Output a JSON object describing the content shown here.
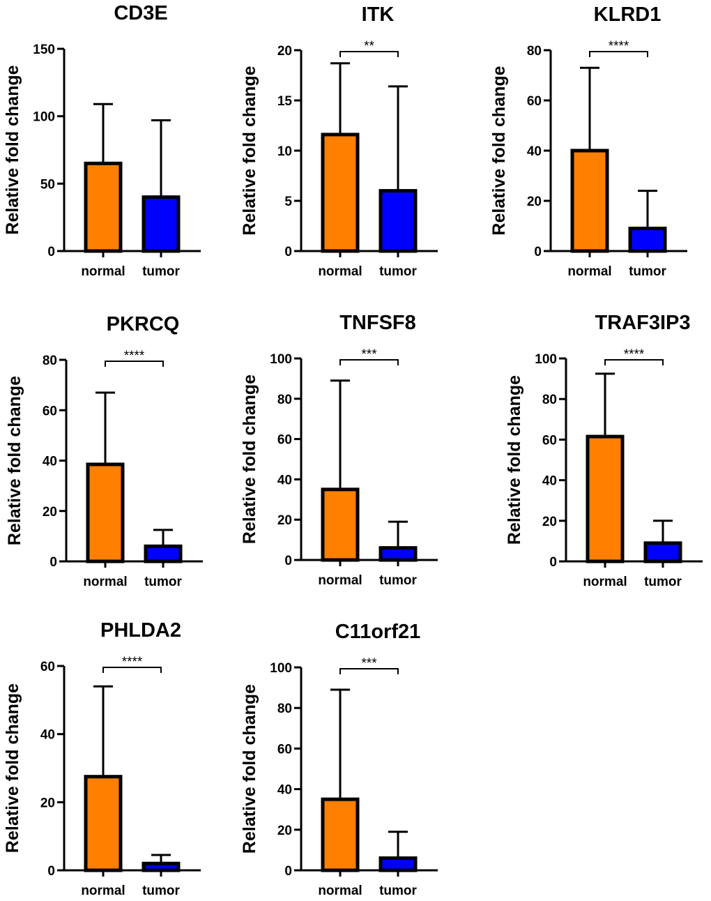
{
  "chart_data": [
    {
      "type": "bar",
      "title": "CD3E",
      "ylabel": "Relative fold change",
      "categories": [
        "normal",
        "tumor"
      ],
      "values": [
        65,
        40
      ],
      "error_upper": [
        109,
        97
      ],
      "ylim": [
        0,
        150
      ],
      "yticks": [
        0,
        50,
        100,
        150
      ],
      "significance": "",
      "colors": [
        "#ff8000",
        "#0000ff"
      ]
    },
    {
      "type": "bar",
      "title": "ITK",
      "ylabel": "Relative fold change",
      "categories": [
        "normal",
        "tumor"
      ],
      "values": [
        11.6,
        6
      ],
      "error_upper": [
        18.7,
        16.4
      ],
      "ylim": [
        0,
        20
      ],
      "yticks": [
        0,
        5,
        10,
        15,
        20
      ],
      "significance": "**",
      "colors": [
        "#ff8000",
        "#0000ff"
      ]
    },
    {
      "type": "bar",
      "title": "KLRD1",
      "ylabel": "Relative fold change",
      "categories": [
        "normal",
        "tumor"
      ],
      "values": [
        40,
        9
      ],
      "error_upper": [
        73,
        24
      ],
      "ylim": [
        0,
        80
      ],
      "yticks": [
        0,
        20,
        40,
        60,
        80
      ],
      "significance": "****",
      "colors": [
        "#ff8000",
        "#0000ff"
      ]
    },
    {
      "type": "bar",
      "title": "PKRCQ",
      "ylabel": "Relative fold change",
      "categories": [
        "normal",
        "tumor"
      ],
      "values": [
        38.5,
        6
      ],
      "error_upper": [
        67,
        12.5
      ],
      "ylim": [
        0,
        80
      ],
      "yticks": [
        0,
        20,
        40,
        60,
        80
      ],
      "significance": "****",
      "colors": [
        "#ff8000",
        "#0000ff"
      ]
    },
    {
      "type": "bar",
      "title": "TNFSF8",
      "ylabel": "Relative fold change",
      "categories": [
        "normal",
        "tumor"
      ],
      "values": [
        35,
        6
      ],
      "error_upper": [
        89,
        19
      ],
      "ylim": [
        0,
        100
      ],
      "yticks": [
        0,
        20,
        40,
        60,
        80,
        100
      ],
      "significance": "***",
      "colors": [
        "#ff8000",
        "#0000ff"
      ]
    },
    {
      "type": "bar",
      "title": "TRAF3IP3",
      "ylabel": "Relative fold change",
      "categories": [
        "normal",
        "tumor"
      ],
      "values": [
        61.5,
        9
      ],
      "error_upper": [
        92.5,
        20
      ],
      "ylim": [
        0,
        100
      ],
      "yticks": [
        0,
        20,
        40,
        60,
        80,
        100
      ],
      "significance": "****",
      "colors": [
        "#ff8000",
        "#0000ff"
      ]
    },
    {
      "type": "bar",
      "title": "PHLDA2",
      "ylabel": "Relative fold change",
      "categories": [
        "normal",
        "tumor"
      ],
      "values": [
        27.5,
        2
      ],
      "error_upper": [
        54,
        4.5
      ],
      "ylim": [
        0,
        60
      ],
      "yticks": [
        0,
        20,
        40,
        60
      ],
      "significance": "****",
      "colors": [
        "#ff8000",
        "#0000ff"
      ]
    },
    {
      "type": "bar",
      "title": "C11orf21",
      "ylabel": "Relative fold change",
      "categories": [
        "normal",
        "tumor"
      ],
      "values": [
        35,
        6
      ],
      "error_upper": [
        89,
        19
      ],
      "ylim": [
        0,
        100
      ],
      "yticks": [
        0,
        20,
        40,
        60,
        80,
        100
      ],
      "significance": "***",
      "colors": [
        "#ff8000",
        "#0000ff"
      ]
    }
  ]
}
